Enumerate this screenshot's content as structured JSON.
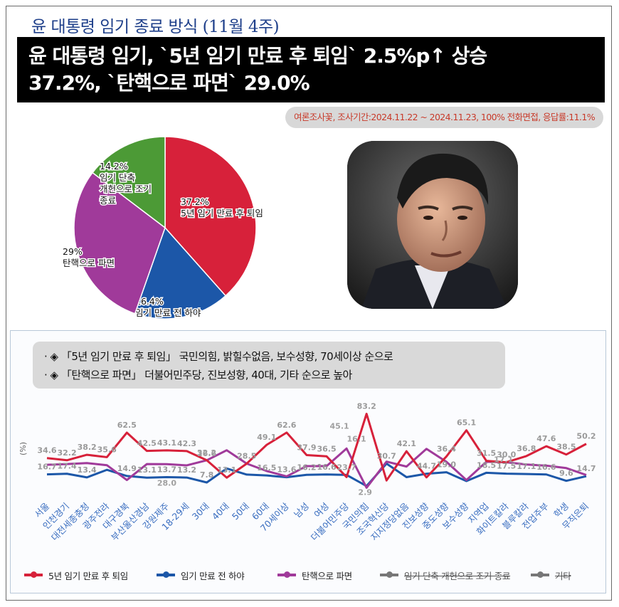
{
  "title": "윤 대통령 임기 종료 방식 (11월 4주)",
  "headline": {
    "line1": "윤 대통령 임기, `5년 임기 만료 후 퇴임` 2.5%p↑ 상승",
    "line2": "37.2%, `탄핵으로 파면` 29.0%"
  },
  "survey_info": "여론조사꽃, 조사기간:2024.11.22 ~ 2024.11.23, 100% 전화면접, 응답률:11.1%",
  "notes": [
    "· ◈ 「5년 임기 만료 후 퇴임」 국민의힘, 밝힐수없음, 보수성향, 70세이상 순으로",
    "· ◈ 「탄핵으로 파면」 더불어민주당, 진보성향, 40대, 기타 순으로 높아"
  ],
  "colors": {
    "red": "#d7213a",
    "blue": "#1c57a8",
    "purple": "#a03a9a",
    "green": "#4c9a36",
    "gray": "#777777"
  },
  "chart_data": [
    {
      "type": "pie",
      "slices": [
        {
          "pct_label": "37.2%",
          "label": "5년 임기 만료 후 퇴임",
          "value": 37.2,
          "color": "#d7213a"
        },
        {
          "pct_label": "16.4%",
          "label": "임기 만료 전 하야",
          "value": 16.4,
          "color": "#1c57a8"
        },
        {
          "pct_label": "29%",
          "label": "탄핵으로 파면",
          "value": 29.0,
          "color": "#a03a9a"
        },
        {
          "pct_label": "14.2%",
          "label": "임기 단축\n개헌으로 조기\n종료",
          "value": 14.2,
          "color": "#4c9a36"
        }
      ]
    },
    {
      "type": "line",
      "ylabel": "(%)",
      "categories": [
        "서울",
        "인천경기",
        "대전세종충청",
        "광주전라",
        "대구경북",
        "부산울산경남",
        "강원제주",
        "18-29세",
        "30대",
        "40대",
        "50대",
        "60대",
        "70세이상",
        "남성",
        "여성",
        "더불어민주당",
        "국민의힘",
        "조국혁신당",
        "지지정당없음",
        "진보성향",
        "중도성향",
        "보수성향",
        "지역업",
        "화이트칼라",
        "블루칼라",
        "전업주부",
        "학생",
        "무직은퇴"
      ],
      "series": [
        {
          "name": "5년 임기 만료 후 퇴임",
          "color": "#d7213a",
          "values": [
            34.6,
            32.2,
            38.2,
            35.6,
            62.5,
            42.5,
            43.1,
            42.3,
            32.2,
            13.1,
            28.5,
            49.1,
            62.6,
            37.9,
            36.5,
            13.7,
            83.2,
            10.0,
            42.1,
            13.4,
            36.4,
            65.1,
            31.5,
            30.0,
            36.8,
            47.6,
            38.5,
            50.2
          ]
        },
        {
          "name": "임기 만료 전 하야",
          "color": "#1c57a8",
          "values": [
            16.7,
            17.4,
            13.4,
            21.7,
            14.9,
            13.1,
            13.7,
            13.2,
            7.8,
            23.2,
            16.5,
            15.5,
            13.6,
            16.2,
            16.6,
            16.1,
            3.9,
            28.5,
            13.7,
            17.4,
            19.0,
            9.4,
            18.5,
            17.5,
            17.1,
            16.6,
            9.6,
            14.7
          ]
        },
        {
          "name": "탄핵으로 파면",
          "color": "#a03a9a",
          "values": [
            27.2,
            28.0,
            29.1,
            26.8,
            10.5,
            28.0,
            27.9,
            26.6,
            32.2,
            43.2,
            28.5,
            20.4,
            14.5,
            25.8,
            25.8,
            45.1,
            2.0,
            30.7,
            25.3,
            44.7,
            30.5,
            10.5,
            30.6,
            30.0,
            27.5,
            26.3,
            23.6,
            16.0
          ]
        }
      ],
      "point_labels_red": [
        "34.6",
        "32.2",
        "38.2",
        "35.6",
        "62.5",
        "42.5",
        "43.1",
        "42.3",
        "32.2",
        "13.1",
        "28.5",
        "49.1",
        "62.6",
        "37.9",
        "36.5",
        "",
        "83.2",
        "",
        "42.1",
        "",
        "36.4",
        "65.1",
        "31.5",
        "30.0",
        "36.8",
        "47.6",
        "38.5",
        "50.2"
      ],
      "point_labels_gray": [
        "16.7",
        "17.4",
        "13.4",
        "",
        "14.9",
        "13.1",
        "13.7",
        "13.2",
        "7.8",
        "",
        "",
        "16.5",
        "13.6",
        "16.2",
        "16.6",
        "",
        "",
        "30.7",
        "",
        "44.7",
        "19.0",
        "",
        "18.5",
        "17.5",
        "17.1",
        "16.6",
        "9.6",
        "14.7"
      ],
      "extra_labels": [
        "23.7",
        "2.9",
        "45.1",
        "28.0",
        "26.6",
        "16.1",
        "17.1"
      ]
    }
  ],
  "legend": [
    {
      "label": "5년 임기 만료 후 퇴임",
      "color": "#d7213a",
      "strike": false
    },
    {
      "label": "임기 만료 전 하야",
      "color": "#1c57a8",
      "strike": false
    },
    {
      "label": "탄핵으로 파면",
      "color": "#a03a9a",
      "strike": false
    },
    {
      "label": "임기 단축 개헌으로 조기 종료",
      "color": "#777777",
      "strike": true
    },
    {
      "label": "기타",
      "color": "#777777",
      "strike": true
    }
  ]
}
